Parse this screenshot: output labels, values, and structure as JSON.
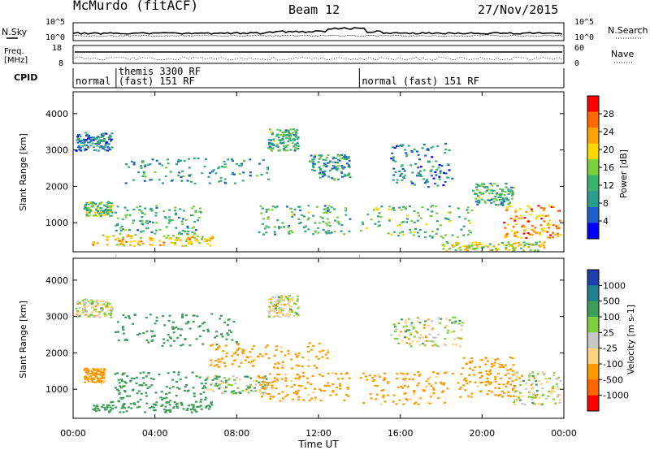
{
  "header": {
    "station": "McMurdo (fitACF)",
    "beam": "Beam 12",
    "date": "27/Nov/2015"
  },
  "sky_panel": {
    "left_label": "N.Sky",
    "right_label": "N.Search",
    "left_ticks": [
      "10^5",
      "10^0"
    ],
    "right_ticks": [
      "10^5",
      "10^0"
    ]
  },
  "freq_panel": {
    "left_label_1": "Freq.",
    "left_label_2": "[MHz]",
    "right_label": "Nave",
    "left_ticks": [
      "18",
      "8"
    ],
    "right_ticks": [
      "60",
      "0"
    ]
  },
  "cpid_panel": {
    "label": "CPID",
    "segments": [
      {
        "start_hour": 0.0,
        "end_hour": 2.1,
        "text_1": "normal",
        "text_2": ""
      },
      {
        "start_hour": 2.1,
        "end_hour": 14.0,
        "text_1": "themis 3300 RF",
        "text_2": "(fast) 151 RF"
      },
      {
        "start_hour": 14.0,
        "end_hour": 24.0,
        "text_1": "normal (fast) 151 RF",
        "text_2": ""
      }
    ]
  },
  "x_axis": {
    "label": "Time UT",
    "ticks": [
      "00:00",
      "04:00",
      "08:00",
      "12:00",
      "16:00",
      "20:00",
      "00:00"
    ]
  },
  "chart_data": [
    {
      "type": "heatmap",
      "name": "power",
      "xlabel": "Time UT",
      "ylabel": "Slant Range [km]",
      "xlim": [
        0,
        24
      ],
      "ylim": [
        200,
        4600
      ],
      "y_ticks": [
        "1000",
        "2000",
        "3000",
        "4000"
      ],
      "colorbar": {
        "label": "Power [dB]",
        "ticks": [
          "4",
          "8",
          "12",
          "16",
          "20",
          "24",
          "28"
        ],
        "range": [
          0,
          32
        ],
        "colors": [
          "#0000ff",
          "#1e5fc9",
          "#2a9d8f",
          "#3cb371",
          "#7dce3c",
          "#ffd700",
          "#ffa500",
          "#ff6a00",
          "#ff0000"
        ]
      },
      "blobs": [
        {
          "t0": 0.9,
          "t1": 6.8,
          "r0": 380,
          "r1": 700,
          "value": 20
        },
        {
          "t0": 2.0,
          "t1": 6.2,
          "r0": 700,
          "r1": 1500,
          "value": 12
        },
        {
          "t0": 0.1,
          "t1": 1.9,
          "r0": 3000,
          "r1": 3500,
          "value": 8
        },
        {
          "t0": 0.5,
          "t1": 1.9,
          "r0": 1200,
          "r1": 1600,
          "value": 14
        },
        {
          "t0": 2.5,
          "t1": 9.5,
          "r0": 2100,
          "r1": 2800,
          "value": 10
        },
        {
          "t0": 9.5,
          "t1": 11.0,
          "r0": 3000,
          "r1": 3600,
          "value": 12
        },
        {
          "t0": 9.0,
          "t1": 13.5,
          "r0": 700,
          "r1": 1500,
          "value": 12
        },
        {
          "t0": 11.5,
          "t1": 13.5,
          "r0": 2200,
          "r1": 2900,
          "value": 10
        },
        {
          "t0": 14.0,
          "t1": 19.5,
          "r0": 600,
          "r1": 1500,
          "value": 14
        },
        {
          "t0": 15.5,
          "t1": 18.5,
          "r0": 2000,
          "r1": 3200,
          "value": 8
        },
        {
          "t0": 19.5,
          "t1": 21.5,
          "r0": 1500,
          "r1": 2100,
          "value": 12
        },
        {
          "t0": 21.0,
          "t1": 23.8,
          "r0": 600,
          "r1": 1500,
          "value": 24
        },
        {
          "t0": 18.0,
          "t1": 23.0,
          "r0": 250,
          "r1": 500,
          "value": 18
        }
      ]
    },
    {
      "type": "heatmap",
      "name": "velocity",
      "xlabel": "Time UT",
      "ylabel": "Slant Range [km]",
      "xlim": [
        0,
        24
      ],
      "ylim": [
        200,
        4600
      ],
      "y_ticks": [
        "1000",
        "2000",
        "3000",
        "4000"
      ],
      "colorbar": {
        "label": "Velocity [m s-1]",
        "ticks": [
          "1000",
          "500",
          "100",
          "25",
          "-25",
          "-100",
          "-500",
          "-1000"
        ],
        "range": [
          -1000,
          1000
        ],
        "colors": [
          "#1e3fae",
          "#1f7f8c",
          "#3c9e5a",
          "#7fd13b",
          "#c8c8c8",
          "#ffd27f",
          "#ff9900",
          "#ff6600",
          "#ff0000"
        ]
      },
      "blobs": [
        {
          "t0": 0.1,
          "t1": 1.9,
          "r0": 3000,
          "r1": 3500,
          "value": 0
        },
        {
          "t0": 0.5,
          "t1": 1.5,
          "r0": 1200,
          "r1": 1600,
          "value": -200
        },
        {
          "t0": 0.9,
          "t1": 6.8,
          "r0": 380,
          "r1": 700,
          "value": 300
        },
        {
          "t0": 2.0,
          "t1": 6.5,
          "r0": 700,
          "r1": 1500,
          "value": 300
        },
        {
          "t0": 2.0,
          "t1": 8.0,
          "r0": 2200,
          "r1": 3100,
          "value": 300
        },
        {
          "t0": 6.5,
          "t1": 9.5,
          "r0": 900,
          "r1": 1400,
          "value": 60
        },
        {
          "t0": 6.5,
          "t1": 12.5,
          "r0": 1600,
          "r1": 2300,
          "value": -200
        },
        {
          "t0": 9.5,
          "t1": 11.0,
          "r0": 3000,
          "r1": 3600,
          "value": 0
        },
        {
          "t0": 9.0,
          "t1": 13.5,
          "r0": 700,
          "r1": 1500,
          "value": -200
        },
        {
          "t0": 14.0,
          "t1": 19.0,
          "r0": 600,
          "r1": 1500,
          "value": -200
        },
        {
          "t0": 15.5,
          "t1": 19.0,
          "r0": 2200,
          "r1": 3000,
          "value": 0
        },
        {
          "t0": 19.0,
          "t1": 21.5,
          "r0": 800,
          "r1": 1900,
          "value": -200
        },
        {
          "t0": 21.5,
          "t1": 23.8,
          "r0": 600,
          "r1": 1500,
          "value": 0
        }
      ]
    }
  ]
}
